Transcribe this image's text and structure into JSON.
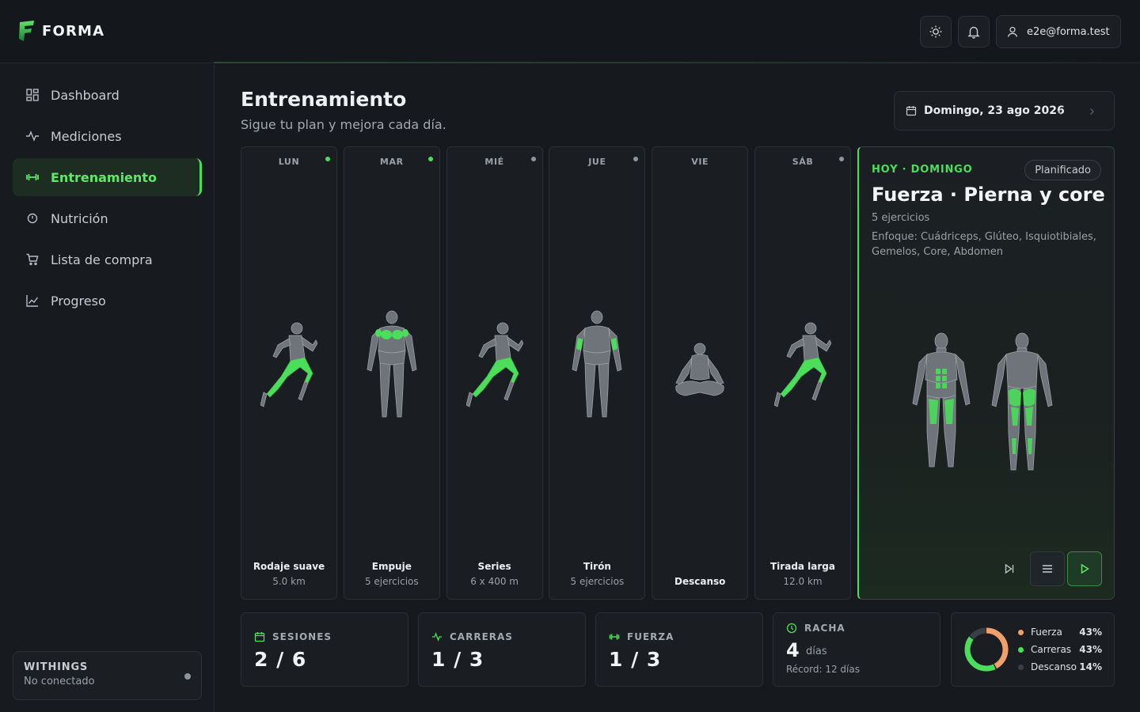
{
  "app": {
    "name": "FORMA",
    "user_email": "e2e@forma.test"
  },
  "colors": {
    "accent": "#4ade5a",
    "fuerza": "#f2a06a",
    "carreras": "#4ade5a",
    "descanso": "#3a3f45",
    "dot_done": "#4ade5a",
    "dot_pending": "#8f959c"
  },
  "sidebar": {
    "items": [
      {
        "label": "Dashboard",
        "icon": "grid-icon"
      },
      {
        "label": "Mediciones",
        "icon": "pulse-icon"
      },
      {
        "label": "Entrenamiento",
        "icon": "dumbbell-icon",
        "active": true
      },
      {
        "label": "Nutrición",
        "icon": "clock-icon"
      },
      {
        "label": "Lista de compra",
        "icon": "cart-icon"
      },
      {
        "label": "Progreso",
        "icon": "chart-icon"
      }
    ],
    "withings": {
      "title": "WITHINGS",
      "status": "No conectado"
    }
  },
  "page": {
    "title": "Entrenamiento",
    "subtitle": "Sigue tu plan y mejora cada día."
  },
  "date": {
    "label": "Domingo, 23 ago 2026"
  },
  "week": [
    {
      "day": "LUN",
      "workout": "Rodaje suave",
      "detail": "5.0 km",
      "dot": "done",
      "figure": "runner"
    },
    {
      "day": "MAR",
      "workout": "Empuje",
      "detail": "5 ejercicios",
      "dot": "done",
      "figure": "front-push"
    },
    {
      "day": "MIÉ",
      "workout": "Series",
      "detail": "6 x 400 m",
      "dot": "pending",
      "figure": "runner"
    },
    {
      "day": "JUE",
      "workout": "Tirón",
      "detail": "5 ejercicios",
      "dot": "pending",
      "figure": "front-pull"
    },
    {
      "day": "VIE",
      "workout": "Descanso",
      "detail": "",
      "dot": "none",
      "figure": "meditate"
    },
    {
      "day": "SÁB",
      "workout": "Tirada larga",
      "detail": "12.0 km",
      "dot": "pending",
      "figure": "runner"
    }
  ],
  "today": {
    "label": "HOY · DOMINGO",
    "badge": "Planificado",
    "title": "Fuerza · Pierna y core",
    "count": "5 ejercicios",
    "focus": "Enfoque: Cuádriceps, Glúteo, Isquiotibiales, Gemelos, Core, Abdomen"
  },
  "stats": {
    "sesiones": {
      "label": "SESIONES",
      "value": "2 / 6"
    },
    "carreras": {
      "label": "CARRERAS",
      "value": "1 / 3"
    },
    "fuerza": {
      "label": "FUERZA",
      "value": "1 / 3"
    },
    "racha": {
      "label": "RACHA",
      "value": "4",
      "unit": "días",
      "record": "Récord: 12 días"
    }
  },
  "distribution": [
    {
      "name": "Fuerza",
      "pct": "43%",
      "value": 43
    },
    {
      "name": "Carreras",
      "pct": "43%",
      "value": 43
    },
    {
      "name": "Descanso",
      "pct": "14%",
      "value": 14
    }
  ]
}
